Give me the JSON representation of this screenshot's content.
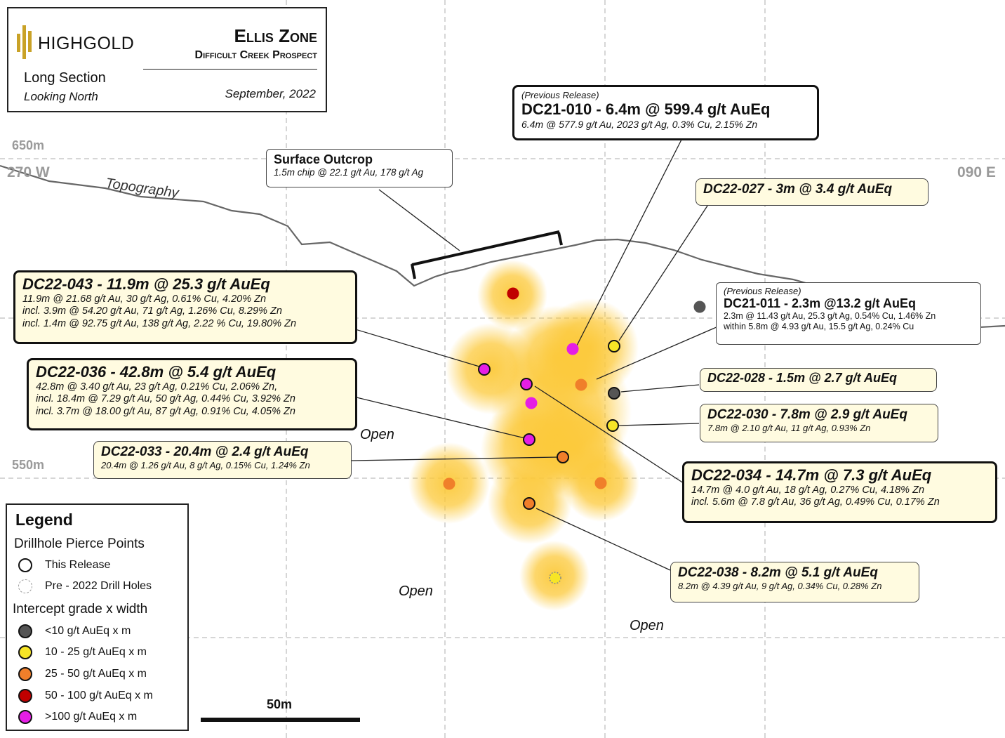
{
  "header": {
    "brand": "HIGHGOLD",
    "zone_title": "Ellis Zone",
    "prospect": "Difficult Creek Prospect",
    "section_type": "Long Section",
    "view": "Looking North",
    "date": "September, 2022"
  },
  "axes": {
    "elev_650": "650m",
    "elev_550": "550m",
    "west": "270 W",
    "east": "090 E",
    "topography": "Topography",
    "scale": "50m"
  },
  "open_labels": [
    "Open",
    "Open",
    "Open"
  ],
  "surface_outcrop": {
    "title": "Surface Outcrop",
    "detail": "1.5m chip @ 22.1 g/t Au, 178 g/t Ag"
  },
  "callouts": {
    "dc21_010": {
      "pre": "(Previous Release)",
      "title": "DC21-010 - 6.4m @ 599.4 g/t AuEq",
      "detail": "6.4m @ 577.9 g/t Au, 2023 g/t Ag, 0.3% Cu, 2.15% Zn"
    },
    "dc22_027": {
      "title": "DC22-027 - 3m @ 3.4 g/t AuEq"
    },
    "dc21_011": {
      "pre": "(Previous Release)",
      "title": "DC21-011 - 2.3m @13.2 g/t AuEq",
      "d1": "2.3m @ 11.43 g/t Au, 25.3 g/t Ag, 0.54% Cu, 1.46% Zn",
      "d2": "within 5.8m @ 4.93 g/t Au, 15.5 g/t Ag, 0.24% Cu"
    },
    "dc22_043": {
      "title": "DC22-043 - 11.9m @ 25.3 g/t AuEq",
      "d1": "11.9m @ 21.68 g/t Au, 30 g/t Ag, 0.61% Cu, 4.20% Zn",
      "d2": "incl. 3.9m @ 54.20 g/t Au, 71 g/t Ag, 1.26% Cu, 8.29% Zn",
      "d3": "incl. 1.4m @ 92.75 g/t Au, 138 g/t Ag, 2.22 % Cu, 19.80% Zn"
    },
    "dc22_036": {
      "title": "DC22-036 - 42.8m @ 5.4 g/t AuEq",
      "d1": "42.8m @ 3.40 g/t Au, 23 g/t Ag, 0.21% Cu, 2.06% Zn,",
      "d2": "incl. 18.4m @ 7.29 g/t Au, 50 g/t Ag, 0.44% Cu, 3.92% Zn",
      "d3": "incl. 3.7m @ 18.00 g/t Au, 87 g/t Ag, 0.91% Cu, 4.05% Zn"
    },
    "dc22_028": {
      "title": "DC22-028 - 1.5m @ 2.7 g/t AuEq"
    },
    "dc22_030": {
      "title": "DC22-030 - 7.8m @ 2.9 g/t AuEq",
      "detail": "7.8m @ 2.10 g/t Au, 11 g/t Ag, 0.93% Zn"
    },
    "dc22_033": {
      "title": "DC22-033 - 20.4m @ 2.4 g/t AuEq",
      "detail": "20.4m @ 1.26 g/t Au, 8 g/t Ag, 0.15% Cu, 1.24% Zn"
    },
    "dc22_034": {
      "title": "DC22-034 - 14.7m @ 7.3 g/t AuEq",
      "d1": "14.7m @ 4.0 g/t Au, 18 g/t Ag, 0.27% Cu, 4.18% Zn",
      "d2": "incl. 5.6m @ 7.8 g/t Au, 36 g/t Ag, 0.49% Cu, 0.17% Zn"
    },
    "dc22_038": {
      "title": "DC22-038 - 8.2m @ 5.1 g/t AuEq",
      "detail": "8.2m @ 4.39 g/t Au, 9 g/t Ag, 0.34% Cu, 0.28% Zn"
    }
  },
  "legend": {
    "title": "Legend",
    "pierce_title": "Drillhole Pierce Points",
    "this_release": "This Release",
    "pre_2022": "Pre - 2022 Drill Holes",
    "grade_title": "Intercept grade x width",
    "classes": [
      {
        "label": "<10 g/t AuEq x m",
        "color": "#555555"
      },
      {
        "label": "10 - 25 g/t AuEq x m",
        "color": "#f7e526"
      },
      {
        "label": "25 - 50 g/t AuEq x m",
        "color": "#f07f2a"
      },
      {
        "label": "50 - 100 g/t AuEq x m",
        "color": "#c00000"
      },
      {
        "label": ">100 g/t AuEq x m",
        "color": "#e51ee5"
      }
    ]
  },
  "colors": {
    "halo": "#fcc93a",
    "callout_fill": "#fffbe0",
    "gold_logo": "#c9a227"
  }
}
